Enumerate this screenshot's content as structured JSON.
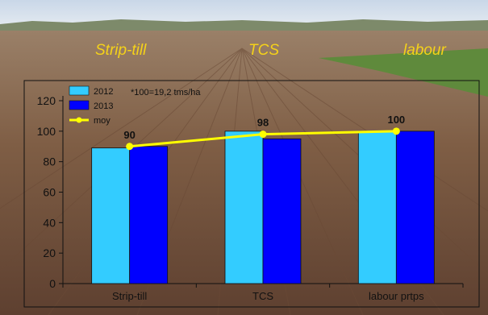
{
  "photo_labels": [
    "Strip-till",
    "TCS",
    "labour"
  ],
  "chart_data": {
    "type": "bar",
    "categories": [
      "Strip-till",
      "TCS",
      "labour prtps"
    ],
    "series": [
      {
        "name": "2012",
        "values": [
          89,
          100,
          100
        ],
        "color": "#33ccff"
      },
      {
        "name": "2013",
        "values": [
          90,
          95,
          100
        ],
        "color": "#0000ff"
      }
    ],
    "line_series": {
      "name": "moy",
      "values": [
        90,
        98,
        100
      ],
      "color": "#ffff00"
    },
    "data_labels": [
      "90",
      "98",
      "100"
    ],
    "ylim": [
      0,
      120
    ],
    "yticks": [
      0,
      20,
      40,
      60,
      80,
      100,
      120
    ],
    "annotation": "*100=19,2 tms/ha",
    "legend_position": "top-left",
    "grid": false
  },
  "colors": {
    "title_text": "#f5d219",
    "axis": "#111111"
  }
}
